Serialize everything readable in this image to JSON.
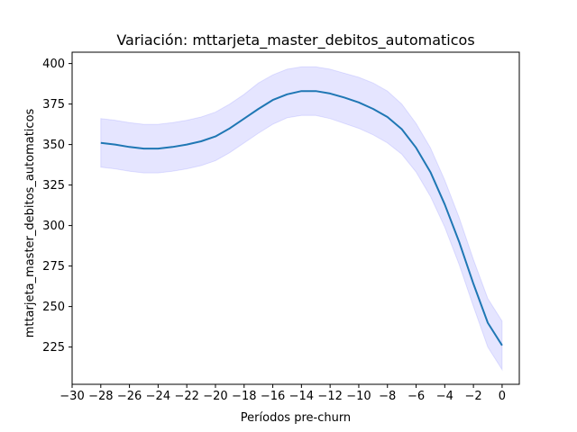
{
  "chart_data": {
    "type": "line",
    "title": "Variación: mttarjeta_master_debitos_automaticos",
    "xlabel": "Períodos pre-churn",
    "ylabel": "mttarjeta_master_debitos_automaticos",
    "xlim": [
      -30,
      1.2
    ],
    "ylim": [
      202,
      407
    ],
    "xticks": [
      -30,
      -28,
      -26,
      -24,
      -22,
      -20,
      -18,
      -16,
      -14,
      -12,
      -10,
      -8,
      -6,
      -4,
      -2,
      0
    ],
    "yticks": [
      225,
      250,
      275,
      300,
      325,
      350,
      375,
      400
    ],
    "grid": false,
    "colors": {
      "line": "#1f77b4",
      "band": "#0000ff"
    },
    "series": [
      {
        "x": [
          -28,
          -27,
          -26,
          -25,
          -24,
          -23,
          -22,
          -21,
          -20,
          -19,
          -18,
          -17,
          -16,
          -15,
          -14,
          -13,
          -12,
          -11,
          -10,
          -9,
          -8,
          -7,
          -6,
          -5,
          -4,
          -3,
          -2,
          -1,
          0
        ],
        "values": [
          351,
          350,
          348.5,
          347.5,
          347.5,
          348.5,
          350,
          352,
          355,
          360,
          366,
          372,
          377.5,
          381,
          383,
          383,
          381.5,
          379,
          376,
          372,
          367,
          359.5,
          348,
          333,
          313,
          290,
          264,
          240,
          226
        ],
        "lower": [
          336,
          335,
          333.5,
          332.5,
          332.5,
          333.5,
          335,
          337,
          340,
          345,
          351,
          357,
          362.5,
          366.5,
          368,
          368,
          366,
          363,
          360,
          356,
          351,
          344,
          333,
          318,
          299,
          276,
          250,
          225,
          211
        ],
        "upper": [
          366,
          365,
          363.5,
          362.5,
          362.5,
          363.5,
          365,
          367,
          370,
          375,
          381,
          388,
          393,
          396.5,
          398,
          398,
          396.5,
          394,
          391.5,
          388,
          383,
          375,
          363,
          348,
          328,
          305,
          279,
          255,
          241
        ]
      }
    ]
  }
}
